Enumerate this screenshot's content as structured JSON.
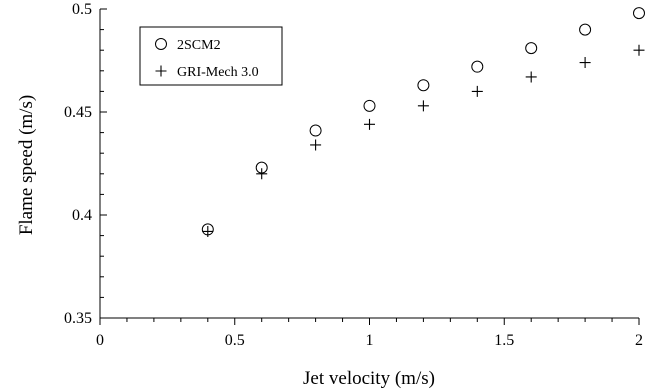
{
  "chart_data": {
    "type": "scatter",
    "title": "",
    "xlabel": "Jet velocity (m/s)",
    "ylabel": "Flame speed (m/s)",
    "xlim": [
      0,
      2
    ],
    "ylim": [
      0.35,
      0.5
    ],
    "xticks": [
      0,
      0.5,
      1,
      1.5,
      2
    ],
    "xtick_labels": [
      "0",
      "0.5",
      "1",
      "1.5",
      "2"
    ],
    "yticks": [
      0.35,
      0.4,
      0.45,
      0.5
    ],
    "ytick_labels": [
      "0.35",
      "0.4",
      "0.45",
      "0.5"
    ],
    "x_minor_step": 0.1,
    "y_minor_step": 0.01,
    "grid": false,
    "legend_position": "top-left",
    "series": [
      {
        "name": "2SCM2",
        "marker": "circle",
        "color": "#000000",
        "x": [
          0.4,
          0.6,
          0.8,
          1.0,
          1.2,
          1.4,
          1.6,
          1.8,
          2.0
        ],
        "y": [
          0.393,
          0.423,
          0.441,
          0.453,
          0.463,
          0.472,
          0.481,
          0.49,
          0.498
        ]
      },
      {
        "name": "GRI-Mech 3.0",
        "marker": "plus",
        "color": "#000000",
        "x": [
          0.4,
          0.6,
          0.8,
          1.0,
          1.2,
          1.4,
          1.6,
          1.8,
          2.0
        ],
        "y": [
          0.392,
          0.42,
          0.434,
          0.444,
          0.453,
          0.46,
          0.467,
          0.474,
          0.48
        ]
      }
    ]
  }
}
